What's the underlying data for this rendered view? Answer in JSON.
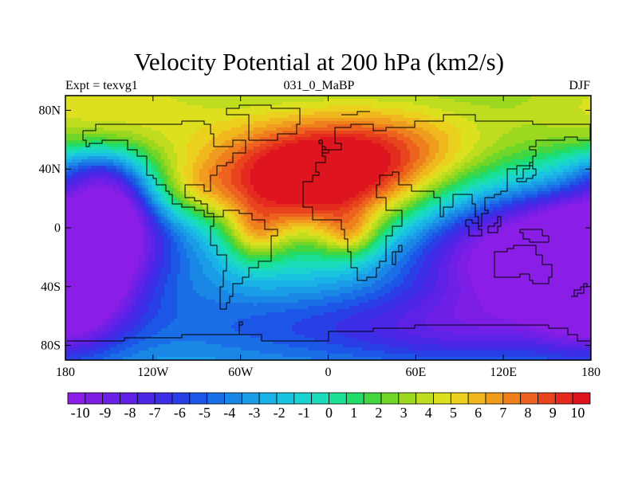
{
  "chart_data": {
    "type": "heatmap",
    "title": "Velocity Potential at 200 hPa (km2/s)",
    "subtitle_left": "Expt = texvg1",
    "subtitle_center": "031_0_MaBP",
    "subtitle_right": "DJF",
    "units": "km2/s",
    "x_range": [
      -180,
      180
    ],
    "y_range": [
      -90,
      90
    ],
    "x_ticks": [
      {
        "value": -180,
        "label": "180"
      },
      {
        "value": -120,
        "label": "120W"
      },
      {
        "value": -60,
        "label": "60W"
      },
      {
        "value": 0,
        "label": "0"
      },
      {
        "value": 60,
        "label": "60E"
      },
      {
        "value": 120,
        "label": "120E"
      },
      {
        "value": 180,
        "label": "180"
      }
    ],
    "y_ticks": [
      {
        "value": 80,
        "label": "80N"
      },
      {
        "value": 40,
        "label": "40N"
      },
      {
        "value": 0,
        "label": "0"
      },
      {
        "value": -40,
        "label": "40S"
      },
      {
        "value": -80,
        "label": "80S"
      }
    ],
    "field_features": [
      {
        "type": "max",
        "lon": -20,
        "lat": 30,
        "value": 10,
        "desc": "upper-level maximum over North Africa / Atlantic"
      },
      {
        "type": "min",
        "lon": 130,
        "lat": -20,
        "value": -10,
        "desc": "minimum over Indian Ocean / Australia"
      },
      {
        "type": "min",
        "lon": -175,
        "lat": -25,
        "value": -10,
        "desc": "minimum over southwest Pacific (dateline)"
      }
    ],
    "colorbar": {
      "min": -10.5,
      "max": 10.5,
      "label_values": [
        -10,
        -9,
        -8,
        -7,
        -6,
        -5,
        -4,
        -3,
        -2,
        -1,
        0,
        1,
        2,
        3,
        4,
        5,
        6,
        7,
        8,
        9,
        10
      ],
      "labels": [
        "-10",
        "-9",
        "-8",
        "-7",
        "-6",
        "-5",
        "-4",
        "-3",
        "-2",
        "-1",
        "0",
        "1",
        "2",
        "3",
        "4",
        "5",
        "6",
        "7",
        "8",
        "9",
        "10"
      ],
      "colors": [
        "#8b1ee6",
        "#7d1ee6",
        "#6e20e6",
        "#5e22e6",
        "#4c26e6",
        "#3c2ee6",
        "#2a3ee6",
        "#1c56e6",
        "#1a6ee6",
        "#1a86e6",
        "#1a9ce6",
        "#1ab2e6",
        "#1ac4e0",
        "#1ad2d0",
        "#1adcb8",
        "#1ae096",
        "#22dc6a",
        "#44d640",
        "#72d628",
        "#9cd820",
        "#c0dc1e",
        "#dce01e",
        "#ecd01e",
        "#f0b81e",
        "#f09c1e",
        "#ee801e",
        "#ec621e",
        "#e8441e",
        "#e42c1e",
        "#de141e"
      ]
    }
  }
}
